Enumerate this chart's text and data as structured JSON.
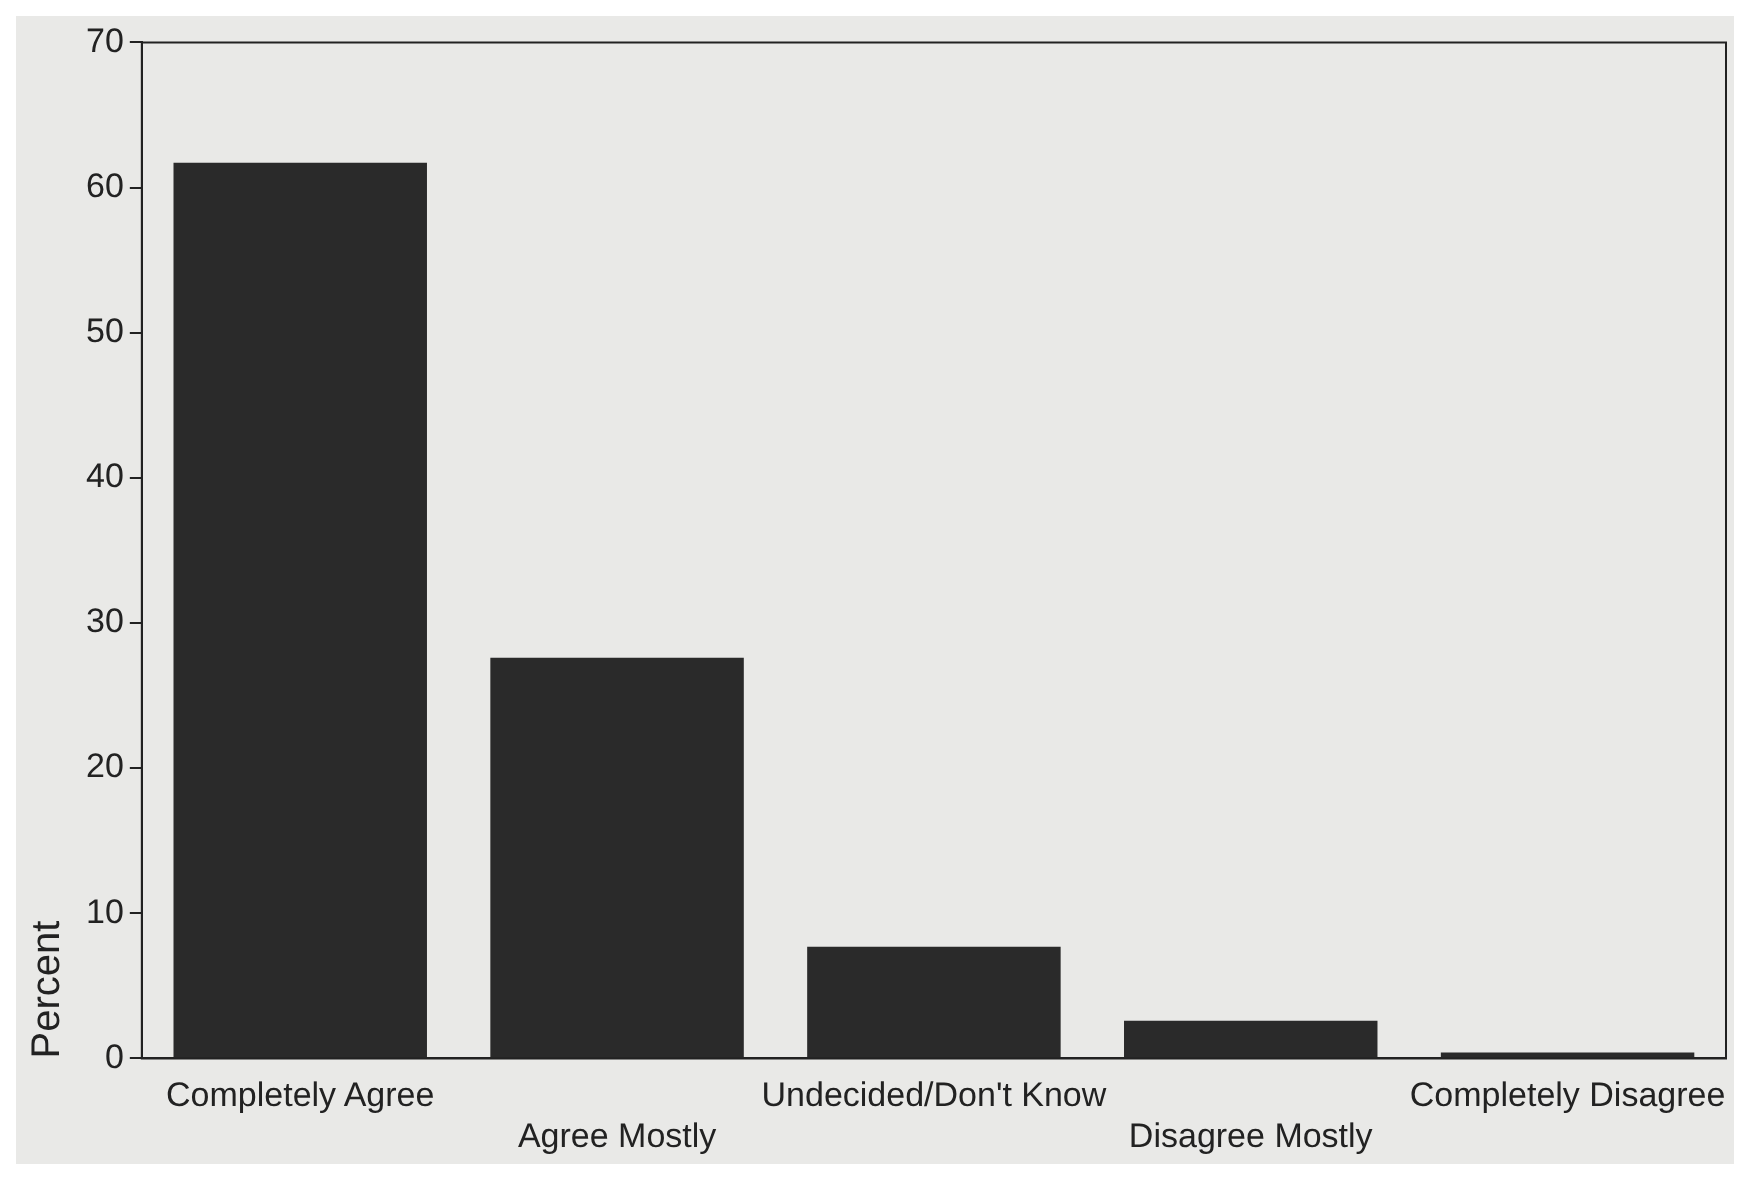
{
  "chart_data": {
    "type": "bar",
    "ylabel": "Percent",
    "categories": [
      "Completely Agree",
      "Agree Mostly",
      "Undecided/Don't Know",
      "Disagree Mostly",
      "Completely Disagree"
    ],
    "values": [
      61.7,
      27.6,
      7.7,
      2.6,
      0.4
    ],
    "color": "#2a2a2a",
    "ylim": [
      0,
      70
    ],
    "yticks": [
      0,
      10,
      20,
      30,
      40,
      50,
      60,
      70
    ],
    "grid": false
  }
}
